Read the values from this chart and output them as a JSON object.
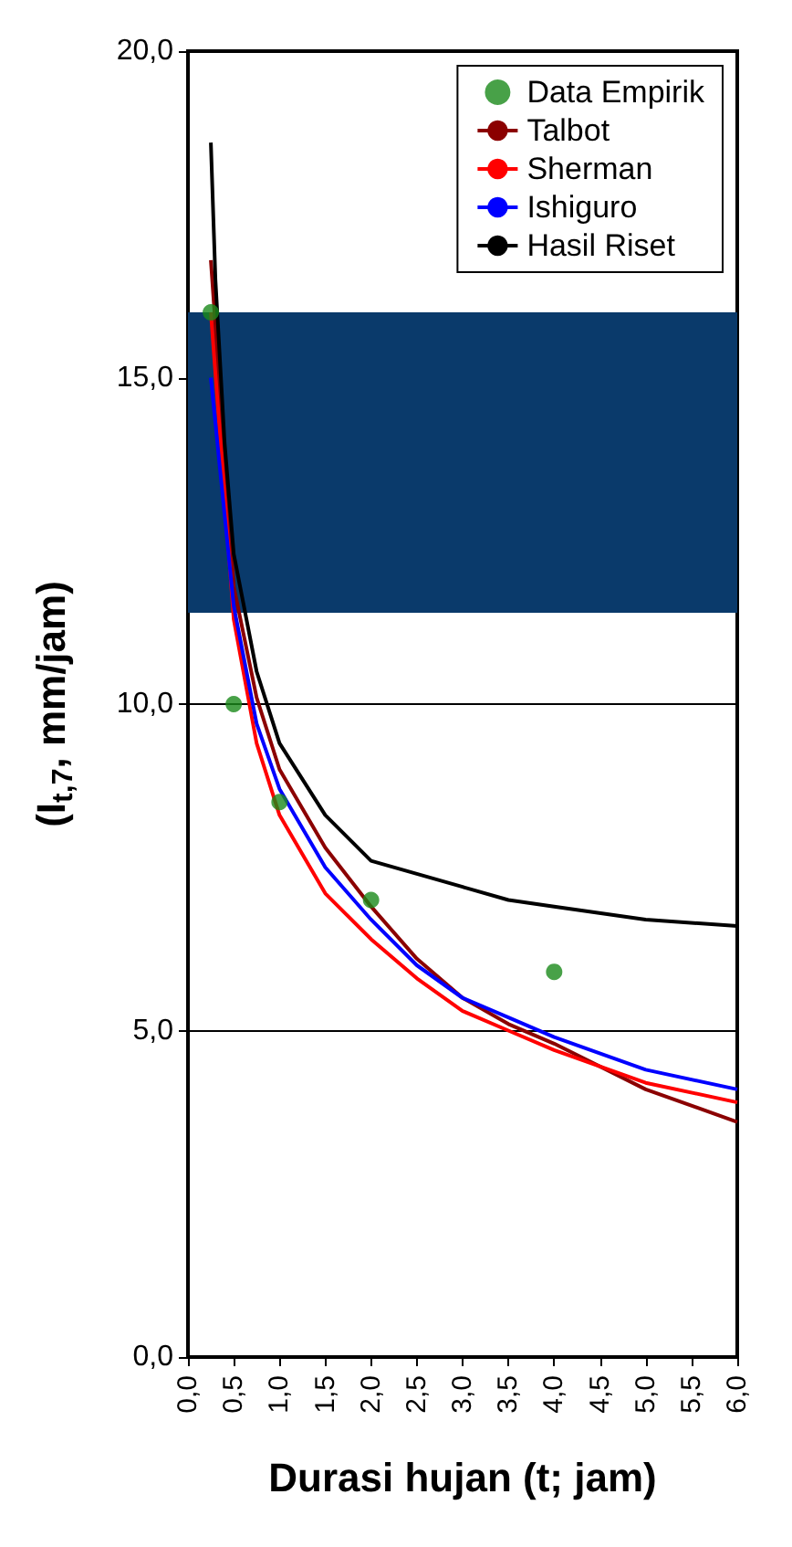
{
  "chart_data": {
    "type": "line",
    "xlabel": "Durasi hujan (t; jam)",
    "ylabel": "(I$_{t,7}$, mm/jam)",
    "xlim": [
      0,
      6
    ],
    "xticks": [
      {
        "value": 0,
        "label": "0,0"
      },
      {
        "value": 0.5,
        "label": "0,5"
      },
      {
        "value": 1,
        "label": "1,0"
      },
      {
        "value": 1.5,
        "label": "1,5"
      },
      {
        "value": 2,
        "label": "2,0"
      },
      {
        "value": 2.5,
        "label": "2,5"
      },
      {
        "value": 3,
        "label": "3,0"
      },
      {
        "value": 3.5,
        "label": "3,5"
      },
      {
        "value": 4,
        "label": "4,0"
      },
      {
        "value": 4.5,
        "label": "4,5"
      },
      {
        "value": 5,
        "label": "5,0"
      },
      {
        "value": 5.5,
        "label": "5,5"
      },
      {
        "value": 6,
        "label": "6,0"
      }
    ],
    "ylim": [
      0,
      20
    ],
    "yticks": [
      {
        "value": 0,
        "label": "0,0"
      },
      {
        "value": 5,
        "label": "5,0"
      },
      {
        "value": 10,
        "label": "10,0"
      },
      {
        "value": 15,
        "label": "15,0"
      },
      {
        "value": 20,
        "label": "20,0"
      }
    ],
    "grid": "y",
    "legend": "top right",
    "marker": "none",
    "bands": [
      {
        "axis": "y",
        "from": 11.4,
        "to": 16,
        "color": "#0a3a6b"
      }
    ],
    "series": [
      {
        "name": "Data Empirik",
        "type": "scatter",
        "marker": "circle",
        "color": "#1a8a1a",
        "x": [
          0.25,
          0.5,
          1,
          2,
          4
        ],
        "values": [
          16,
          10,
          8.5,
          7,
          5.9
        ]
      },
      {
        "name": "Talbot",
        "color": "#8b0000",
        "x": [
          0.25,
          0.5,
          0.75,
          1,
          1.5,
          2,
          2.5,
          3,
          3.5,
          4,
          5,
          6
        ],
        "values": [
          16.8,
          11.8,
          10.1,
          9,
          7.8,
          6.9,
          6.1,
          5.5,
          5.1,
          4.8,
          4.1,
          3.6
        ]
      },
      {
        "name": "Sherman",
        "color": "#ff0000",
        "x": [
          0.25,
          0.5,
          0.75,
          1,
          1.5,
          2,
          2.5,
          3,
          3.5,
          4,
          5,
          6
        ],
        "values": [
          16,
          11.3,
          9.4,
          8.3,
          7.1,
          6.4,
          5.8,
          5.3,
          5,
          4.7,
          4.2,
          3.9
        ]
      },
      {
        "name": "Ishiguro",
        "color": "#0000ff",
        "x": [
          0.25,
          0.5,
          0.75,
          1,
          1.5,
          2,
          2.5,
          3,
          3.5,
          4,
          5,
          6
        ],
        "values": [
          15,
          11.5,
          9.7,
          8.7,
          7.5,
          6.7,
          6,
          5.5,
          5.2,
          4.9,
          4.4,
          4.1
        ]
      },
      {
        "name": "Hasil Riset",
        "color": "#000000",
        "x": [
          0.25,
          0.3,
          0.4,
          0.5,
          0.75,
          1,
          1.5,
          2,
          2.5,
          3,
          3.5,
          4,
          5,
          6
        ],
        "values": [
          18.6,
          16.5,
          14,
          12.3,
          10.5,
          9.4,
          8.3,
          7.6,
          7.4,
          7.2,
          7,
          6.9,
          6.7,
          6.6
        ]
      }
    ]
  }
}
